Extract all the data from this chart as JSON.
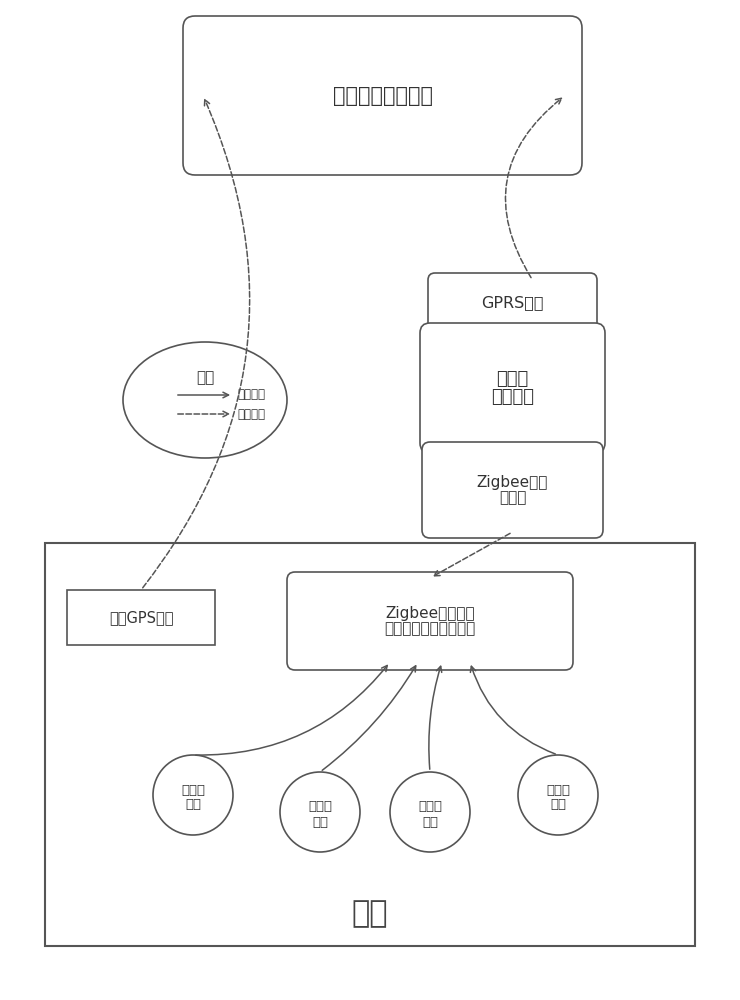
{
  "bg_color": "#ffffff",
  "remote_center_label": "远程网络管理中心",
  "truck_label": "货车",
  "gps_label": "车载GPS模块",
  "zigbee_node_line1": "Zigbee节点模块",
  "zigbee_node_line2": "（带时钟以及存储器）",
  "gprs_label": "GPRS模块",
  "handheld_line1": "手持式",
  "handheld_line2": "移动终端",
  "zigbee_coord_line1": "Zigbee协调",
  "zigbee_coord_line2": "器模块",
  "sensor_line1": "压力传",
  "sensor_line2": "感器",
  "legend_title": "图例",
  "legend_wired": "有线通信",
  "legend_wireless": "无线通信",
  "line_color": "#555555",
  "text_color": "#333333"
}
